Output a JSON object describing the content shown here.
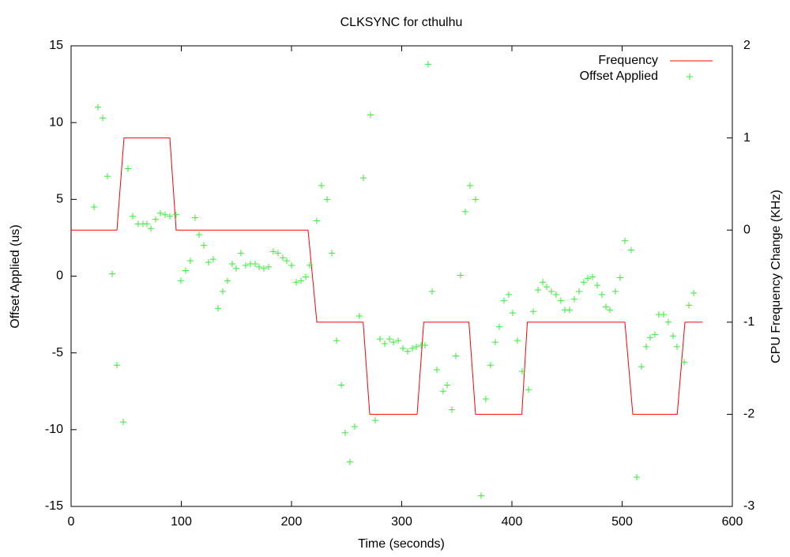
{
  "chart_data": {
    "type": "line",
    "title": "CLKSYNC for cthulhu",
    "xlabel": "Time (seconds)",
    "ylabel": "Offset Applied (us)",
    "y2label": "CPU Frequency Change (KHz)",
    "xlim": [
      0,
      600
    ],
    "xticks": [
      0,
      100,
      200,
      300,
      400,
      500,
      600
    ],
    "ylim": [
      -15,
      15
    ],
    "yticks": [
      -15,
      -10,
      -5,
      0,
      5,
      10,
      15
    ],
    "y2lim": [
      -3,
      2
    ],
    "y2ticks": [
      -3,
      -2,
      -1,
      0,
      1,
      2
    ],
    "legend": "top right",
    "series": [
      {
        "name": "Frequency",
        "color": "#ff0000",
        "style": "line",
        "axis": "y2",
        "x": [
          0,
          41.6,
          48,
          89.6,
          95.3,
          215,
          223,
          265,
          271,
          314,
          320,
          361,
          367,
          409,
          414,
          502.5,
          509.7,
          550,
          557,
          573
        ],
        "values": [
          0,
          0,
          1,
          1,
          0,
          0,
          -1,
          -1,
          -2,
          -2,
          -1,
          -1,
          -2,
          -2,
          -1,
          -1,
          -2,
          -2,
          -1,
          -1
        ]
      },
      {
        "name": "Offset Applied",
        "color": "#33ee33",
        "style": "points",
        "x": [
          20.8,
          24.4,
          28.7,
          33,
          37.3,
          41.6,
          47.3,
          51.6,
          55.9,
          60.9,
          65.2,
          68.8,
          72.4,
          76.7,
          81,
          85.3,
          89.6,
          95.3,
          99.6,
          103.9,
          108.2,
          112.5,
          116.1,
          120.4,
          124.7,
          129,
          133.3,
          137.6,
          141.9,
          146.2,
          149.8,
          154.1,
          158.4,
          162.7,
          167,
          170.6,
          174.9,
          179.2,
          183.5,
          187.8,
          192.1,
          195.7,
          200,
          204.3,
          208.6,
          212.9,
          216.5,
          222.9,
          227.2,
          232.3,
          236.6,
          240.9,
          245.2,
          248.7,
          253,
          257.3,
          261.6,
          265.2,
          271.7,
          276,
          280.3,
          284.6,
          288.9,
          292.5,
          296.8,
          301.1,
          305.4,
          309.7,
          313.3,
          317.6,
          321.1,
          324,
          327.6,
          331.9,
          337.6,
          341.2,
          345.5,
          349.1,
          353.4,
          357.7,
          362,
          367,
          372,
          376.3,
          380.6,
          384.9,
          388.5,
          392.8,
          397.1,
          400.7,
          405,
          409.3,
          415.1,
          419.4,
          423.7,
          428,
          431.5,
          435.8,
          440.1,
          444.4,
          448,
          452.3,
          456.6,
          460.9,
          465.2,
          468.8,
          473.1,
          477.4,
          481.7,
          485.3,
          488.9,
          493.9,
          498.2,
          502.5,
          508.2,
          513.3,
          517.6,
          521.9,
          525.4,
          529.7,
          533.3,
          537.6,
          541.9,
          546.2,
          549.8,
          556.3,
          560.6,
          564.9
        ],
        "values": [
          4.5,
          11.0,
          10.3,
          6.5,
          0.15,
          -5.8,
          -9.5,
          7.0,
          3.9,
          3.4,
          3.4,
          3.4,
          3.1,
          3.7,
          4.1,
          4.0,
          3.9,
          4.0,
          -0.3,
          0.36,
          1.0,
          3.8,
          2.7,
          2.0,
          0.9,
          1.1,
          -2.1,
          -1.0,
          -0.3,
          0.8,
          0.5,
          1.5,
          0.7,
          0.8,
          0.8,
          0.6,
          0.5,
          0.6,
          1.6,
          1.5,
          1.2,
          1.0,
          0.7,
          -0.4,
          -0.3,
          -0.05,
          0.7,
          3.6,
          5.9,
          5.0,
          1.5,
          -4.2,
          -7.1,
          -10.2,
          -12.1,
          -9.8,
          -2.6,
          6.4,
          10.5,
          -9.4,
          -4.1,
          -4.4,
          -4.1,
          -4.3,
          -4.2,
          -4.7,
          -4.9,
          -4.7,
          -4.6,
          -4.5,
          -4.5,
          13.8,
          -1.0,
          -6.1,
          -7.5,
          -7.1,
          -8.7,
          -5.2,
          0.05,
          4.2,
          5.9,
          5.0,
          -14.3,
          -8.0,
          -5.8,
          -4.3,
          -3.3,
          -1.6,
          -1.2,
          -2.4,
          -4.2,
          -6.2,
          -7.4,
          -2.3,
          -0.9,
          -0.4,
          -0.7,
          -1.0,
          -1.2,
          -1.6,
          -2.2,
          -2.2,
          -1.5,
          -1.0,
          -0.4,
          -0.15,
          -0.05,
          -0.6,
          -1.2,
          -2.0,
          -2.2,
          -1.0,
          -0.1,
          2.3,
          1.7,
          -13.1,
          -5.9,
          -4.6,
          -4.0,
          -3.8,
          -2.5,
          -2.5,
          -3.0,
          -3.9,
          -4.6,
          -5.6,
          -1.9,
          -1.1
        ]
      }
    ]
  }
}
